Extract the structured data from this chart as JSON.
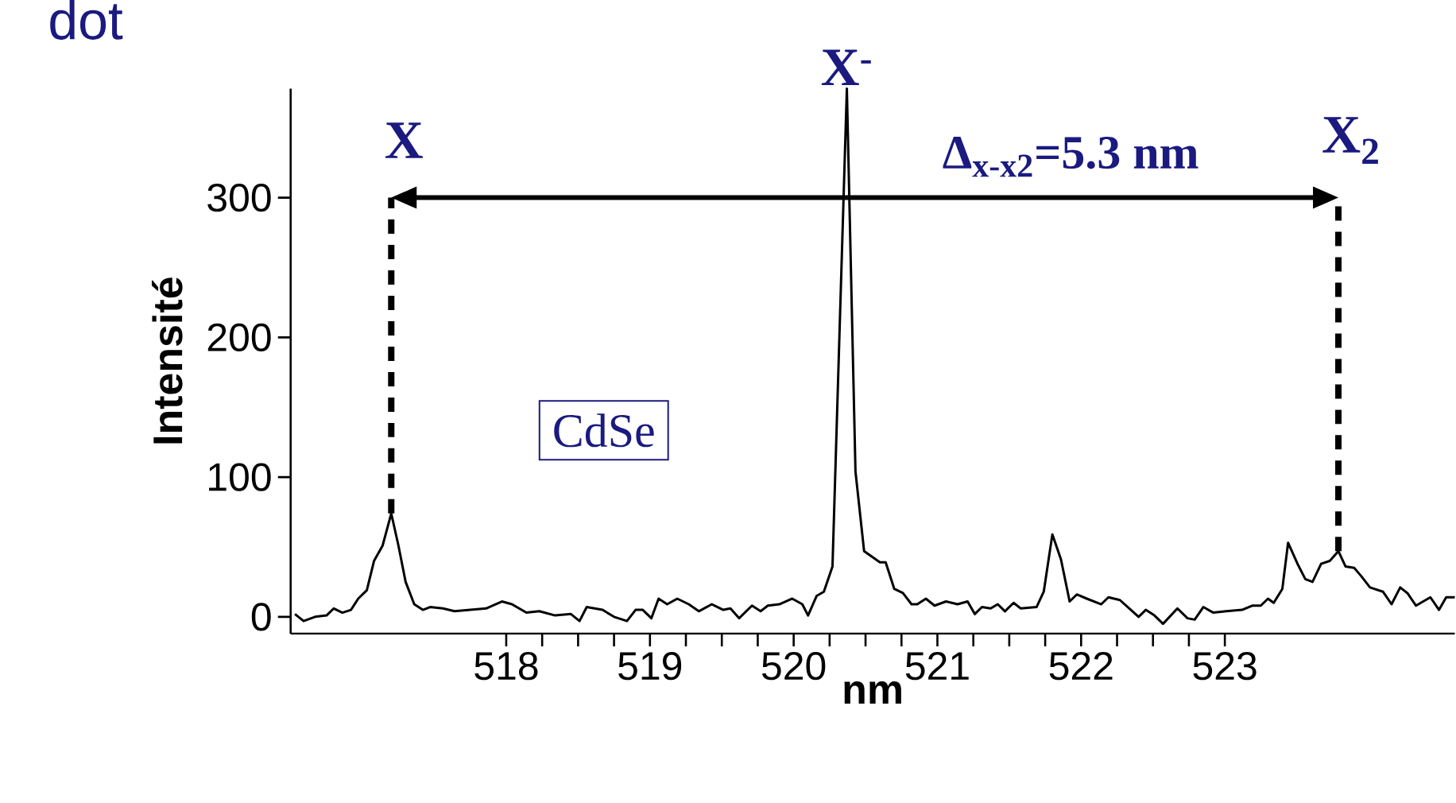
{
  "chart_data": {
    "type": "line",
    "xlabel": "nm",
    "ylabel": "Intensité",
    "color": "#000000",
    "marker": "none",
    "line_style": "solid",
    "xlim": [
      516.5,
      524.6
    ],
    "ylim": [
      -12,
      378
    ],
    "xticks": [
      518,
      519,
      520,
      521,
      522,
      523
    ],
    "yticks": [
      0,
      100,
      200,
      300
    ],
    "x": [
      516.53,
      516.59,
      516.67,
      516.75,
      516.8,
      516.86,
      516.92,
      516.97,
      517.03,
      517.08,
      517.14,
      517.2,
      517.25,
      517.3,
      517.36,
      517.42,
      517.47,
      517.56,
      517.64,
      517.75,
      517.86,
      517.97,
      518.04,
      518.14,
      518.23,
      518.34,
      518.45,
      518.51,
      518.56,
      518.67,
      518.75,
      518.84,
      518.9,
      518.95,
      519.01,
      519.06,
      519.12,
      519.19,
      519.27,
      519.34,
      519.43,
      519.51,
      519.56,
      519.62,
      519.71,
      519.77,
      519.82,
      519.9,
      519.99,
      520.06,
      520.1,
      520.16,
      520.21,
      520.27,
      520.37,
      520.43,
      520.49,
      520.6,
      520.64,
      520.7,
      520.76,
      520.82,
      520.86,
      520.92,
      520.98,
      521.06,
      521.14,
      521.21,
      521.26,
      521.31,
      521.37,
      521.42,
      521.47,
      521.53,
      521.58,
      521.69,
      521.74,
      521.8,
      521.86,
      521.92,
      521.97,
      522.04,
      522.14,
      522.19,
      522.27,
      522.4,
      522.45,
      522.51,
      522.57,
      522.67,
      522.74,
      522.79,
      522.85,
      522.92,
      523.01,
      523.12,
      523.19,
      523.25,
      523.3,
      523.34,
      523.4,
      523.44,
      523.51,
      523.56,
      523.61,
      523.67,
      523.73,
      523.79,
      523.84,
      523.9,
      523.95,
      524.01,
      524.1,
      524.16,
      524.22,
      524.27,
      524.33,
      524.43,
      524.49,
      524.54,
      524.6
    ],
    "values": [
      2,
      -3,
      0,
      1,
      6,
      3,
      5,
      13,
      19,
      40,
      51,
      74,
      51,
      25,
      9,
      5,
      7,
      6,
      4,
      5,
      6,
      11,
      9,
      3,
      4,
      1,
      2,
      -3,
      7,
      5,
      0,
      -3,
      5,
      5,
      -1,
      13,
      9,
      13,
      9,
      4,
      9,
      5,
      6,
      -1,
      8,
      4,
      8,
      9,
      13,
      9,
      1,
      15,
      18,
      36,
      378,
      104,
      47,
      39,
      39,
      20,
      17,
      9,
      9,
      13,
      8,
      11,
      9,
      11,
      2,
      7,
      6,
      9,
      4,
      10,
      6,
      7,
      18,
      59,
      41,
      11,
      16,
      13,
      9,
      14,
      12,
      0,
      5,
      1,
      -5,
      6,
      -1,
      -2,
      7,
      3,
      4,
      5,
      8,
      8,
      13,
      10,
      20,
      53,
      37,
      27,
      25,
      38,
      40,
      47,
      36,
      35,
      29,
      21,
      18,
      9,
      21,
      17,
      8,
      14,
      5,
      14,
      14
    ],
    "annotations": [
      "dot",
      {
        "text": "X",
        "x": 517.2,
        "y": 74
      },
      {
        "text": "X$^{-}$",
        "x": 520.37,
        "y": 378
      },
      {
        "text": "X$_{2}$",
        "x": 523.79,
        "y": 47
      },
      "Δ$_{x-x2}$=5.3 nm",
      "CdSe"
    ]
  }
}
